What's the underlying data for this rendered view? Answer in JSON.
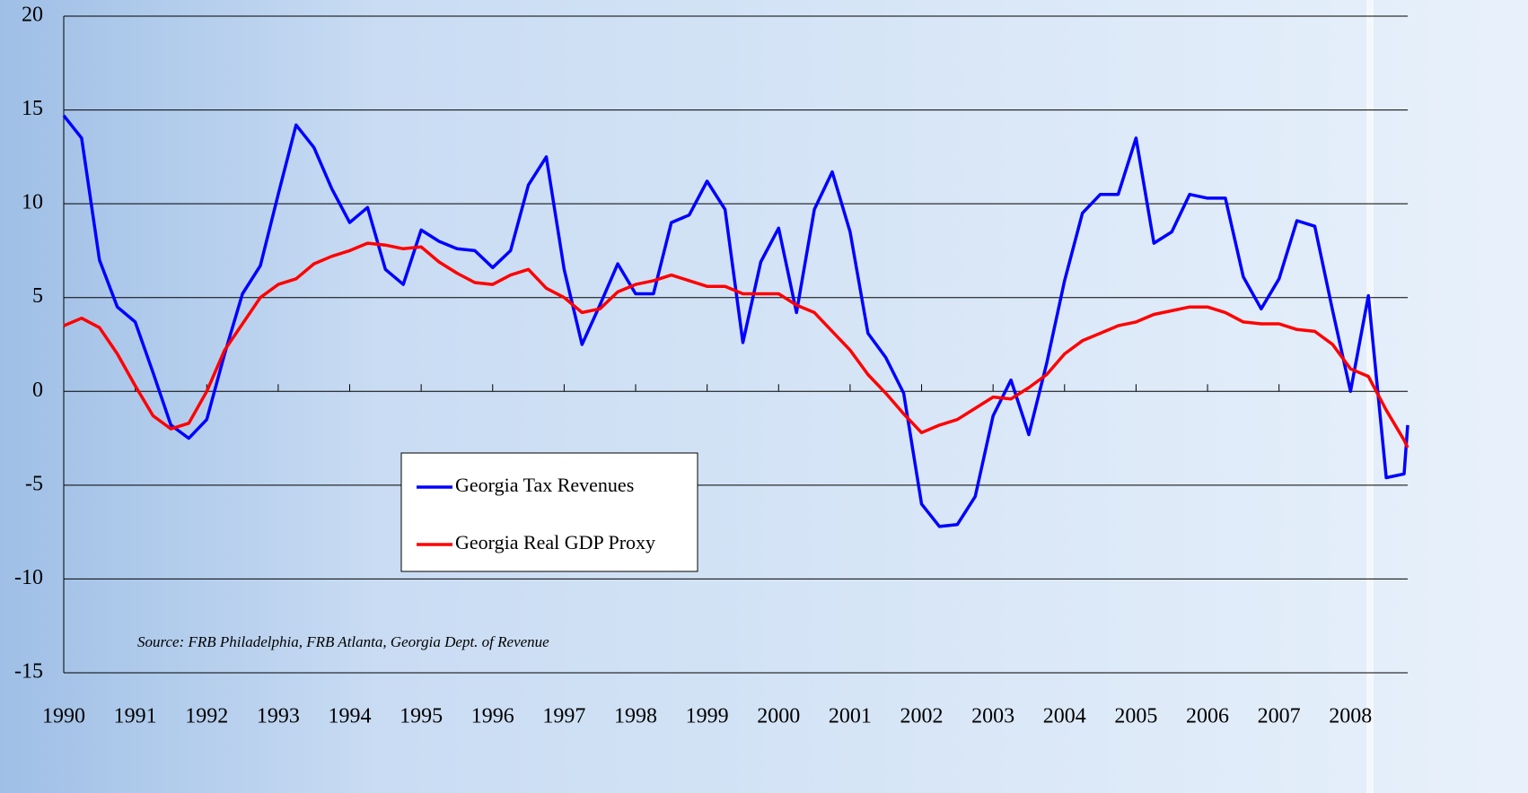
{
  "chart_data": {
    "type": "line",
    "annotation": "Source: FRB Philadelphia, FRB Atlanta, Georgia Dept. of Revenue",
    "x": [
      1990,
      1990.25,
      1990.5,
      1990.75,
      1991,
      1991.25,
      1991.5,
      1991.75,
      1992,
      1992.25,
      1992.5,
      1992.75,
      1993,
      1993.25,
      1993.5,
      1993.75,
      1994,
      1994.25,
      1994.5,
      1994.75,
      1995,
      1995.25,
      1995.5,
      1995.75,
      1996,
      1996.25,
      1996.5,
      1996.75,
      1997,
      1997.25,
      1997.5,
      1997.75,
      1998,
      1998.25,
      1998.5,
      1998.75,
      1999,
      1999.25,
      1999.5,
      1999.75,
      2000,
      2000.25,
      2000.5,
      2000.75,
      2001,
      2001.25,
      2001.5,
      2001.75,
      2002,
      2002.25,
      2002.5,
      2002.75,
      2003,
      2003.25,
      2003.5,
      2003.75,
      2004,
      2004.25,
      2004.5,
      2004.75,
      2005,
      2005.25,
      2005.5,
      2005.75,
      2006,
      2006.25,
      2006.5,
      2006.75,
      2007,
      2007.25,
      2007.5,
      2007.75,
      2008,
      2008.25,
      2008.5,
      2008.75,
      2008.8
    ],
    "series": [
      {
        "name": "Georgia Tax Revenues",
        "color": "#0000ff",
        "values": [
          14.7,
          13.5,
          7,
          4.5,
          3.7,
          1.0,
          -1.8,
          -2.5,
          -1.5,
          2,
          5.2,
          6.7,
          10.5,
          14.2,
          13,
          10.8,
          9,
          9.8,
          6.5,
          5.7,
          8.6,
          8,
          7.6,
          7.5,
          6.6,
          7.5,
          11,
          12.5,
          6.5,
          2.5,
          4.6,
          6.8,
          5.2,
          5.2,
          9,
          9.4,
          11.2,
          9.7,
          2.6,
          6.9,
          8.7,
          4.2,
          9.7,
          11.7,
          8.5,
          3.1,
          1.8,
          -0.1,
          -6,
          -7.2,
          -7.1,
          -5.6,
          -1.3,
          0.6,
          -2.3,
          1.5,
          5.9,
          9.5,
          10.5,
          10.5,
          13.5,
          7.9,
          8.5,
          10.5,
          10.3,
          10.3,
          6.1,
          4.4,
          6,
          9.1,
          8.8,
          4.3,
          0,
          5.1,
          -4.6,
          -4.4,
          -1.8
        ]
      },
      {
        "name": "Georgia Real GDP Proxy",
        "color": "#ff0000",
        "values": [
          3.5,
          3.9,
          3.4,
          2,
          0.3,
          -1.3,
          -2,
          -1.7,
          0,
          2.2,
          3.6,
          5,
          5.7,
          6,
          6.8,
          7.2,
          7.5,
          7.9,
          7.8,
          7.6,
          7.7,
          6.9,
          6.3,
          5.8,
          5.7,
          6.2,
          6.5,
          5.5,
          5,
          4.2,
          4.4,
          5.3,
          5.7,
          5.9,
          6.2,
          5.9,
          5.6,
          5.6,
          5.2,
          5.2,
          5.2,
          4.6,
          4.2,
          3.2,
          2.2,
          0.9,
          -0.1,
          -1.2,
          -2.2,
          -1.8,
          -1.5,
          -0.9,
          -0.3,
          -0.4,
          0.2,
          0.9,
          2,
          2.7,
          3.1,
          3.5,
          3.7,
          4.1,
          4.3,
          4.5,
          4.5,
          4.2,
          3.7,
          3.6,
          3.6,
          3.3,
          3.2,
          2.5,
          1.2,
          0.8,
          -1,
          -2.6,
          -3
        ]
      }
    ],
    "xlim": [
      1990,
      2008.8
    ],
    "xticks": [
      1990,
      1991,
      1992,
      1993,
      1994,
      1995,
      1996,
      1997,
      1998,
      1999,
      2000,
      2001,
      2002,
      2003,
      2004,
      2005,
      2006,
      2007,
      2008
    ],
    "ylim": [
      -15,
      20
    ],
    "yticks": [
      -15,
      -10,
      -5,
      0,
      5,
      10,
      15,
      20
    ],
    "grid": true,
    "legend": "lower-center"
  }
}
